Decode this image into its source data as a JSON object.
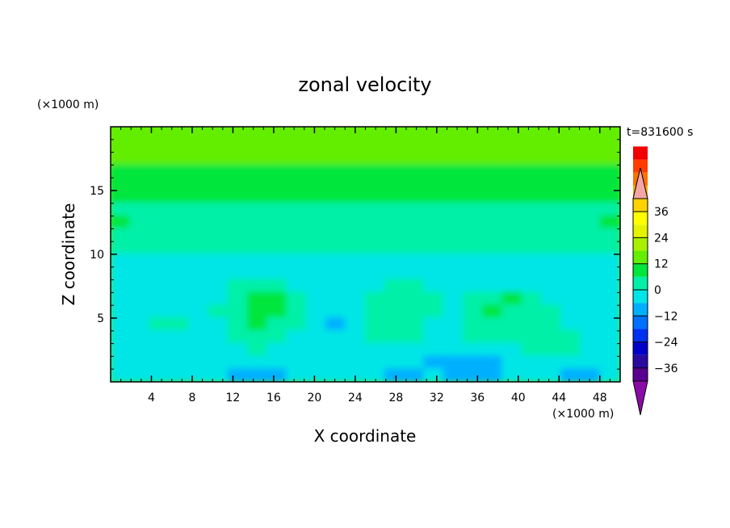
{
  "chart_data": {
    "type": "heatmap",
    "title": "zonal velocity",
    "xlabel": "X coordinate",
    "ylabel": "Z coordinate",
    "x_unit": "(×1000 m)",
    "y_unit": "(×1000 m)",
    "time_label": "t=831600 s",
    "xlim": [
      0,
      50
    ],
    "ylim": [
      0,
      20
    ],
    "x_ticks": [
      4,
      8,
      12,
      16,
      20,
      24,
      28,
      32,
      36,
      40,
      44,
      48
    ],
    "y_ticks": [
      5,
      10,
      15
    ],
    "colorbar": {
      "min": -42,
      "max": 42,
      "step": 6,
      "tick_values": [
        36,
        24,
        12,
        0,
        -12,
        -24,
        -36
      ],
      "tick_labels": [
        "36",
        "24",
        "12",
        "0",
        "−12",
        "−24",
        "−36"
      ],
      "colors": [
        "#5a0090",
        "#2a0aa0",
        "#0000c8",
        "#0030f0",
        "#0070ff",
        "#00b0ff",
        "#00e6e6",
        "#00f0a8",
        "#00e63c",
        "#64ee00",
        "#a8f000",
        "#e4f400",
        "#ffff00",
        "#ffd200",
        "#ffaa00",
        "#ff7000",
        "#ff3c00",
        "#f00000"
      ],
      "over_color": "#f4a6a6",
      "under_color": "#8a0aa6"
    },
    "field_rows": [
      {
        "z": 19.5,
        "u": [
          13,
          14,
          14,
          15,
          15,
          15,
          14,
          14,
          13,
          13,
          13,
          14,
          15,
          15,
          14,
          14,
          14,
          15,
          15,
          15,
          15,
          15,
          14,
          14,
          14,
          14
        ]
      },
      {
        "z": 18.5,
        "u": [
          13,
          13,
          14,
          14,
          14,
          14,
          14,
          13,
          13,
          13,
          13,
          13,
          14,
          14,
          13,
          13,
          13,
          14,
          14,
          14,
          14,
          14,
          14,
          13,
          13,
          13
        ]
      },
      {
        "z": 17.5,
        "u": [
          12,
          12,
          12,
          13,
          13,
          13,
          12,
          12,
          12,
          12,
          12,
          12,
          12,
          13,
          12,
          12,
          12,
          12,
          13,
          13,
          13,
          13,
          12,
          12,
          12,
          12
        ]
      },
      {
        "z": 16.5,
        "u": [
          10,
          10,
          11,
          11,
          11,
          11,
          11,
          10,
          10,
          10,
          10,
          10,
          11,
          11,
          11,
          10,
          10,
          10,
          11,
          11,
          11,
          11,
          11,
          10,
          10,
          10
        ]
      },
      {
        "z": 15.5,
        "u": [
          9,
          9,
          9,
          9,
          9,
          9,
          10,
          9,
          9,
          9,
          9,
          9,
          9,
          9,
          9,
          9,
          9,
          9,
          9,
          9,
          9,
          10,
          9,
          9,
          9,
          9
        ]
      },
      {
        "z": 14.5,
        "u": [
          7,
          7,
          7,
          6,
          7,
          7,
          6,
          6,
          6,
          7,
          7,
          6,
          6,
          6,
          6,
          7,
          7,
          7,
          7,
          6,
          6,
          7,
          7,
          7,
          7,
          7
        ]
      },
      {
        "z": 13.5,
        "u": [
          5,
          4,
          3,
          3,
          4,
          3,
          2,
          2,
          3,
          3,
          4,
          3,
          2,
          2,
          3,
          4,
          4,
          3,
          3,
          3,
          2,
          3,
          4,
          4,
          4,
          5
        ]
      },
      {
        "z": 12.5,
        "u": [
          6,
          5,
          4,
          3,
          3,
          3,
          3,
          3,
          4,
          5,
          5,
          4,
          3,
          3,
          4,
          5,
          5,
          4,
          3,
          3,
          3,
          4,
          5,
          5,
          5,
          6
        ]
      },
      {
        "z": 11.5,
        "u": [
          4,
          4,
          4,
          4,
          4,
          5,
          5,
          4,
          4,
          4,
          4,
          4,
          4,
          4,
          4,
          4,
          4,
          4,
          4,
          4,
          4,
          4,
          4,
          4,
          4,
          4
        ]
      },
      {
        "z": 10.5,
        "u": [
          0,
          0,
          1,
          1,
          0,
          0,
          0,
          0,
          1,
          1,
          0,
          0,
          0,
          0,
          0,
          1,
          1,
          0,
          0,
          0,
          0,
          1,
          1,
          0,
          0,
          0
        ]
      },
      {
        "z": 9.5,
        "u": [
          -3,
          -3,
          -2,
          -3,
          -3,
          -2,
          -2,
          -3,
          -3,
          -2,
          -2,
          -3,
          -3,
          -3,
          -2,
          -2,
          -3,
          -3,
          -2,
          -2,
          -3,
          -3,
          -4,
          -3,
          -3,
          -3
        ]
      },
      {
        "z": 8.5,
        "u": [
          -3,
          -2,
          -2,
          -2,
          -3,
          -3,
          -3,
          -2,
          -1,
          -1,
          -2,
          -3,
          -3,
          -2,
          -2,
          -2,
          -3,
          -3,
          -2,
          -2,
          -2,
          -3,
          -3,
          -3,
          -2,
          -2
        ]
      },
      {
        "z": 7.5,
        "u": [
          -2,
          -2,
          -3,
          -3,
          -3,
          -2,
          1,
          3,
          3,
          -1,
          -3,
          -3,
          -3,
          -1,
          1,
          1,
          -1,
          -3,
          -2,
          -1,
          -2,
          -3,
          -3,
          -3,
          -2,
          -2
        ]
      },
      {
        "z": 6.5,
        "u": [
          -1,
          -2,
          -4,
          -5,
          -4,
          -1,
          4,
          6,
          6,
          1,
          -4,
          -5,
          -4,
          0,
          2,
          2,
          0,
          -2,
          2,
          5,
          6,
          2,
          -2,
          -4,
          -2,
          -1
        ]
      },
      {
        "z": 5.5,
        "u": [
          -2,
          -4,
          -5,
          -5,
          -4,
          0,
          5,
          7,
          6,
          1,
          -5,
          -6,
          -5,
          1,
          4,
          3,
          0,
          -1,
          4,
          6,
          5,
          3,
          0,
          -2,
          -2,
          -1
        ]
      },
      {
        "z": 4.5,
        "u": [
          -3,
          -4,
          2,
          1,
          -4,
          -1,
          4,
          6,
          5,
          0,
          -5,
          -7,
          -5,
          1,
          5,
          3,
          -1,
          -3,
          3,
          5,
          4,
          3,
          1,
          -1,
          -2,
          -2
        ]
      },
      {
        "z": 3.5,
        "u": [
          -2,
          -3,
          -1,
          -1,
          -3,
          -2,
          2,
          4,
          3,
          -1,
          -5,
          -6,
          -4,
          0,
          2,
          1,
          -2,
          -3,
          0,
          2,
          2,
          2,
          2,
          0,
          -1,
          -2
        ]
      },
      {
        "z": 2.5,
        "u": [
          -2,
          -3,
          -4,
          -4,
          -3,
          -1,
          -1,
          0,
          -1,
          -2,
          -4,
          -5,
          -3,
          -1,
          -1,
          -2,
          -3,
          -4,
          -4,
          -3,
          -2,
          0,
          3,
          1,
          -2,
          -3
        ]
      },
      {
        "z": 1.5,
        "u": [
          -4,
          -5,
          -4,
          -2,
          -3,
          -3,
          -5,
          -6,
          -5,
          -3,
          -2,
          -1,
          -2,
          -3,
          -4,
          -5,
          -7,
          -9,
          -9,
          -7,
          -5,
          -4,
          -3,
          -4,
          -5,
          -5
        ]
      },
      {
        "z": 0.5,
        "u": [
          -5,
          -6,
          -3,
          -1,
          -2,
          -4,
          -8,
          -11,
          -10,
          -6,
          -3,
          -2,
          -3,
          -6,
          -8,
          -7,
          -5,
          -7,
          -10,
          -9,
          -6,
          -5,
          -6,
          -8,
          -7,
          -6
        ]
      }
    ]
  }
}
